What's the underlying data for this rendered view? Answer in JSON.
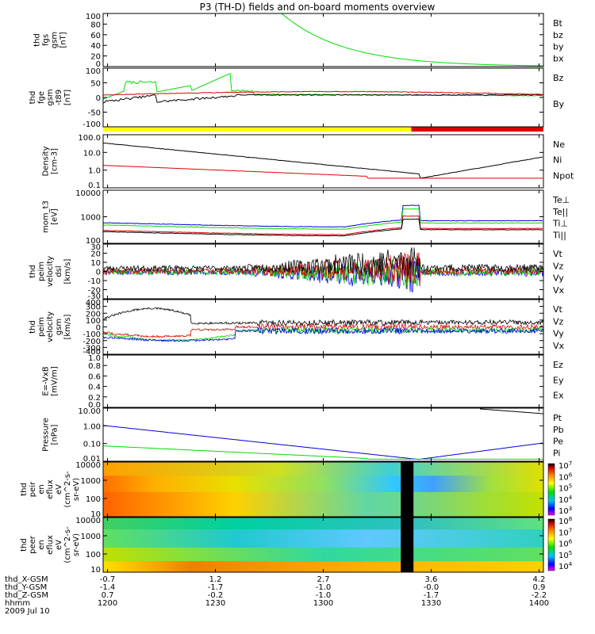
{
  "chart_data": {
    "type": "line",
    "title": "P3 (TH-D) fields and on-board moments overview",
    "colors": {
      "black": "#000000",
      "red": "#dd0000",
      "green": "#00dd00",
      "blue": "#0000dd",
      "yellow": "#ffff00"
    },
    "x_ticks": [
      "1200",
      "1230",
      "1300",
      "1330",
      "1400"
    ],
    "panels": [
      {
        "id": "fgs",
        "ylabel": [
          "thd",
          "fgs",
          "gsm",
          "[nT]"
        ],
        "yticks": [
          "100",
          "80",
          "60",
          "40",
          "20",
          "0"
        ],
        "legend": [
          {
            "name": "Bt",
            "color": "black"
          },
          {
            "name": "bz",
            "color": "red"
          },
          {
            "name": "by",
            "color": "green"
          },
          {
            "name": "bx",
            "color": "blue"
          }
        ]
      },
      {
        "id": "fge",
        "ylabel": [
          "thd",
          "fge",
          "gsm",
          "-t89",
          "[nT]"
        ],
        "yticks": [
          "100",
          "50",
          "0",
          "-50",
          "-100"
        ],
        "legend": [
          {
            "name": "Bz",
            "color": "red"
          },
          {
            "name": "By",
            "color": "green"
          }
        ]
      },
      {
        "id": "density",
        "ylabel": [
          "Density",
          "[cm-3]"
        ],
        "yticks": [
          "100.0",
          "10.0",
          "1.0",
          "0.1"
        ],
        "legend": [
          {
            "name": "Ne",
            "color": "red"
          },
          {
            "name": "Ni",
            "color": "black"
          },
          {
            "name": "Npot",
            "color": "blue"
          }
        ]
      },
      {
        "id": "temp",
        "ylabel": [
          "mom_t3",
          "[eV]"
        ],
        "yticks": [
          "10000",
          "1000",
          "100"
        ],
        "legend": [
          {
            "name": "Te⊥",
            "color": "red"
          },
          {
            "name": "Te||",
            "color": "black"
          },
          {
            "name": "Ti⊥",
            "color": "blue"
          },
          {
            "name": "Ti||",
            "color": "green"
          }
        ]
      },
      {
        "id": "peim",
        "ylabel": [
          "thd",
          "peim",
          "velocity",
          "dsl",
          "[km/s]"
        ],
        "yticks": [
          "30",
          "20",
          "10",
          "0",
          "-10",
          "-20",
          "-30"
        ],
        "legend": [
          {
            "name": "Vt",
            "color": "black"
          },
          {
            "name": "Vz",
            "color": "red"
          },
          {
            "name": "Vy",
            "color": "green"
          },
          {
            "name": "Vx",
            "color": "blue"
          }
        ]
      },
      {
        "id": "peim_gsm",
        "ylabel": [
          "thd",
          "peim",
          "velocity",
          "gsm",
          "[km/s]"
        ],
        "yticks": [
          "400",
          "300",
          "200",
          "100",
          "0",
          "-100",
          "-200",
          "-300",
          "-400"
        ],
        "legend": [
          {
            "name": "Vt",
            "color": "black"
          },
          {
            "name": "Vz",
            "color": "red"
          },
          {
            "name": "Vy",
            "color": "green"
          },
          {
            "name": "Vx",
            "color": "blue"
          }
        ]
      },
      {
        "id": "efield",
        "ylabel": [
          "E=-VxB",
          "[mV/m]"
        ],
        "yticks": [
          "1.0",
          "0.8",
          "0.6",
          "0.4",
          "0.2",
          "0.0"
        ],
        "legend": [
          {
            "name": "Ez",
            "color": "red"
          },
          {
            "name": "Ey",
            "color": "green"
          },
          {
            "name": "Ex",
            "color": "blue"
          }
        ]
      },
      {
        "id": "pressure",
        "ylabel": [
          "Pressure",
          "[nPa]"
        ],
        "yticks": [
          "10.00",
          "1.00",
          "0.10",
          "0.01"
        ],
        "legend": [
          {
            "name": "Pt",
            "color": "black"
          },
          {
            "name": "Pb",
            "color": "red"
          },
          {
            "name": "Pe",
            "color": "green"
          },
          {
            "name": "Pi",
            "color": "blue"
          }
        ]
      },
      {
        "id": "peir",
        "ylabel": [
          "thd",
          "peir",
          "en",
          "eflux",
          "eV",
          "(cm^2-s-",
          "sr-eV)"
        ],
        "yticks": [
          "10000",
          "1000",
          "100",
          "10"
        ],
        "colorbar": [
          "10^7",
          "10^6",
          "10^5",
          "10^4",
          "10^3"
        ]
      },
      {
        "id": "peer",
        "ylabel": [
          "thd",
          "peer",
          "en",
          "eflux",
          "eV",
          "(cm^2-s-",
          "sr-eV)"
        ],
        "yticks": [
          "10000",
          "1000",
          "100",
          "10"
        ],
        "colorbar": [
          "10^8",
          "10^7",
          "10^6",
          "10^5",
          "10^4"
        ]
      }
    ],
    "ephemeris": {
      "labels": [
        "thd_X-GSM",
        "thd_Y-GSM",
        "thd_Z-GSM",
        "hhmm",
        "2009 Jul 10"
      ],
      "X": [
        "-0.7",
        "1.2",
        "2.7",
        "3.6",
        "4.2"
      ],
      "Y": [
        "-1.4",
        "-1.7",
        "-1.0",
        "-0.0",
        "0.9"
      ],
      "Z": [
        "0.7",
        "-0.2",
        "-1.0",
        "-1.7",
        "-2.2"
      ]
    },
    "mode_bar": [
      {
        "from": 0,
        "to": 0.7,
        "color": "yellow"
      },
      {
        "from": 0.7,
        "to": 1,
        "color": "red"
      }
    ]
  }
}
